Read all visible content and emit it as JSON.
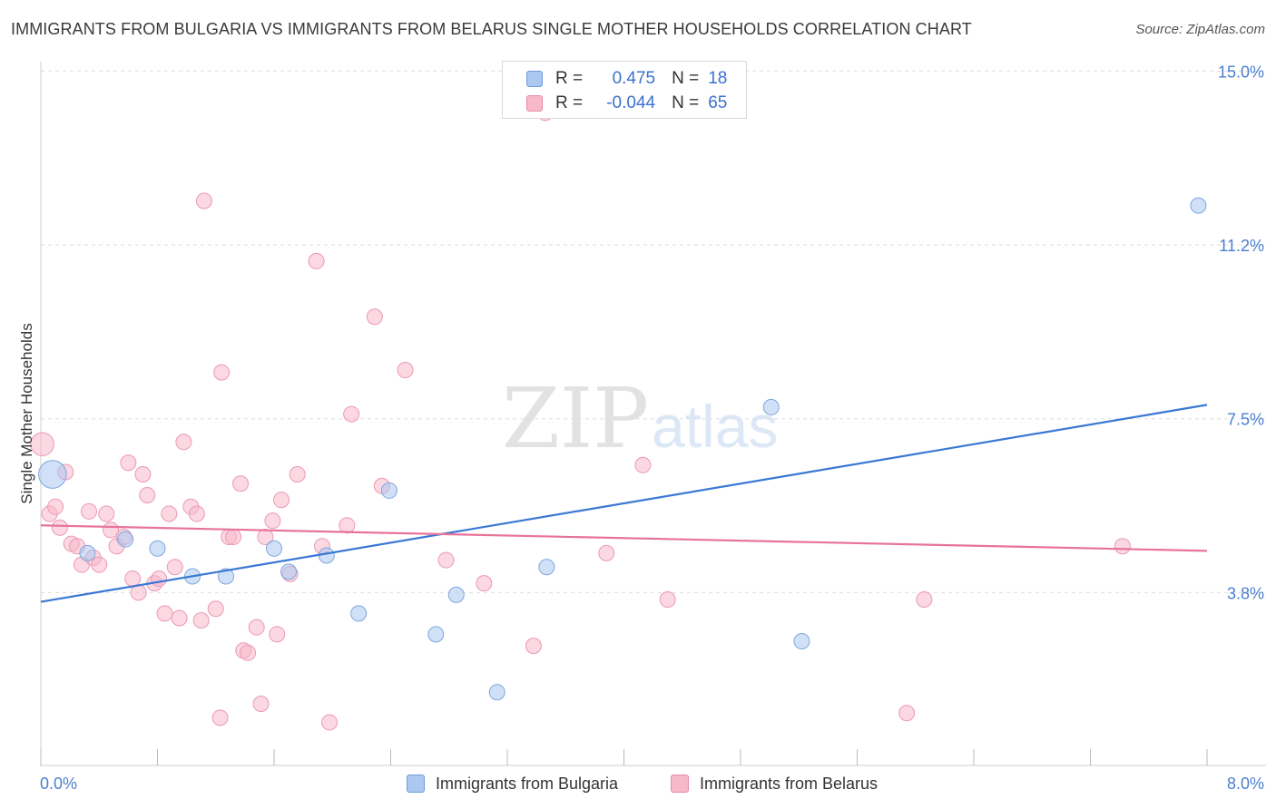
{
  "title": "IMMIGRANTS FROM BULGARIA VS IMMIGRANTS FROM BELARUS SINGLE MOTHER HOUSEHOLDS CORRELATION CHART",
  "source": "Source: ZipAtlas.com",
  "watermark": {
    "zip": "ZIP",
    "atlas": "atlas"
  },
  "legend": {
    "rows": [
      {
        "r_label": "R =",
        "r_value": "0.475",
        "n_label": "N =",
        "n_value": "18",
        "color": "#aac8f0"
      },
      {
        "r_label": "R =",
        "r_value": "-0.044",
        "n_label": "N =",
        "n_value": "65",
        "color": "#f7b8cb"
      }
    ]
  },
  "bottom_legend": [
    {
      "label": "Immigrants from Bulgaria",
      "color": "#aac8f0"
    },
    {
      "label": "Immigrants from Belarus",
      "color": "#f7b8cb"
    }
  ],
  "chart_data": {
    "type": "scatter",
    "ylabel": "Single Mother Households",
    "x_tick_labels": {
      "min": "0.0%",
      "max": "8.0%"
    },
    "y_tick_labels": [
      "15.0%",
      "11.2%",
      "7.5%",
      "3.8%"
    ],
    "xlim": [
      0,
      8.0
    ],
    "ylim": [
      0,
      15.0
    ],
    "y_ticks": [
      15.0,
      11.25,
      7.5,
      3.75
    ],
    "colors": {
      "bulgaria": "#3a78d4",
      "belarus": "#e8739a",
      "bulgaria_fill": "#aac8f0",
      "belarus_fill": "#f7b8cb"
    },
    "series": [
      {
        "name": "Immigrants from Bulgaria",
        "regression": {
          "x": [
            0,
            8.0
          ],
          "y": [
            3.55,
            7.8
          ]
        },
        "points": [
          [
            0.08,
            6.3,
            1.8
          ],
          [
            0.32,
            4.6,
            1
          ],
          [
            0.58,
            4.9,
            1
          ],
          [
            0.8,
            4.7,
            1
          ],
          [
            1.04,
            4.1,
            1
          ],
          [
            1.27,
            4.1,
            1
          ],
          [
            1.6,
            4.7,
            1
          ],
          [
            1.7,
            4.2,
            1
          ],
          [
            1.96,
            4.55,
            1
          ],
          [
            2.18,
            3.3,
            1
          ],
          [
            2.39,
            5.95,
            1
          ],
          [
            2.71,
            2.85,
            1
          ],
          [
            2.85,
            3.7,
            1
          ],
          [
            3.13,
            1.6,
            1
          ],
          [
            3.47,
            4.3,
            1
          ],
          [
            5.01,
            7.75,
            1
          ],
          [
            5.22,
            2.7,
            1
          ],
          [
            7.94,
            12.1,
            1
          ]
        ]
      },
      {
        "name": "Immigrants from Belarus",
        "regression": {
          "x": [
            0,
            8.0
          ],
          "y": [
            5.2,
            4.65
          ]
        },
        "points": [
          [
            0.01,
            6.95,
            1.5
          ],
          [
            0.06,
            5.45,
            1
          ],
          [
            0.1,
            5.6,
            1
          ],
          [
            0.13,
            5.15,
            1
          ],
          [
            0.17,
            6.35,
            1
          ],
          [
            0.21,
            4.8,
            1
          ],
          [
            0.25,
            4.75,
            1
          ],
          [
            0.28,
            4.35,
            1
          ],
          [
            0.33,
            5.5,
            1
          ],
          [
            0.36,
            4.5,
            1
          ],
          [
            0.4,
            4.35,
            1
          ],
          [
            0.45,
            5.45,
            1
          ],
          [
            0.48,
            5.1,
            1
          ],
          [
            0.52,
            4.75,
            1
          ],
          [
            0.57,
            4.95,
            1
          ],
          [
            0.6,
            6.55,
            1
          ],
          [
            0.63,
            4.05,
            1
          ],
          [
            0.67,
            3.75,
            1
          ],
          [
            0.7,
            6.3,
            1
          ],
          [
            0.73,
            5.85,
            1
          ],
          [
            0.78,
            3.95,
            1
          ],
          [
            0.81,
            4.05,
            1
          ],
          [
            0.85,
            3.3,
            1
          ],
          [
            0.88,
            5.45,
            1
          ],
          [
            0.92,
            4.3,
            1
          ],
          [
            0.95,
            3.2,
            1
          ],
          [
            0.98,
            7.0,
            1
          ],
          [
            1.03,
            5.6,
            1
          ],
          [
            1.07,
            5.45,
            1
          ],
          [
            1.1,
            3.15,
            1
          ],
          [
            1.12,
            12.2,
            1
          ],
          [
            1.2,
            3.4,
            1
          ],
          [
            1.23,
            1.05,
            1
          ],
          [
            1.24,
            8.5,
            1
          ],
          [
            1.29,
            4.95,
            1
          ],
          [
            1.32,
            4.95,
            1
          ],
          [
            1.37,
            6.1,
            1
          ],
          [
            1.39,
            2.5,
            1
          ],
          [
            1.42,
            2.45,
            1
          ],
          [
            1.48,
            3.0,
            1
          ],
          [
            1.51,
            1.35,
            1
          ],
          [
            1.54,
            4.95,
            1
          ],
          [
            1.59,
            5.3,
            1
          ],
          [
            1.62,
            2.85,
            1
          ],
          [
            1.65,
            5.75,
            1
          ],
          [
            1.71,
            4.15,
            1
          ],
          [
            1.76,
            6.3,
            1
          ],
          [
            1.89,
            10.9,
            1
          ],
          [
            1.93,
            4.75,
            1
          ],
          [
            1.98,
            0.95,
            1
          ],
          [
            2.1,
            5.2,
            1
          ],
          [
            2.13,
            7.6,
            1
          ],
          [
            2.29,
            9.7,
            1
          ],
          [
            2.34,
            6.05,
            1
          ],
          [
            2.5,
            8.55,
            1
          ],
          [
            2.78,
            4.45,
            1
          ],
          [
            3.04,
            3.95,
            1
          ],
          [
            3.38,
            2.6,
            1
          ],
          [
            3.46,
            14.1,
            1
          ],
          [
            3.88,
            4.6,
            1
          ],
          [
            4.13,
            6.5,
            1
          ],
          [
            4.3,
            3.6,
            1
          ],
          [
            5.94,
            1.15,
            1
          ],
          [
            6.06,
            3.6,
            1
          ],
          [
            7.42,
            4.75,
            1
          ]
        ]
      }
    ]
  }
}
